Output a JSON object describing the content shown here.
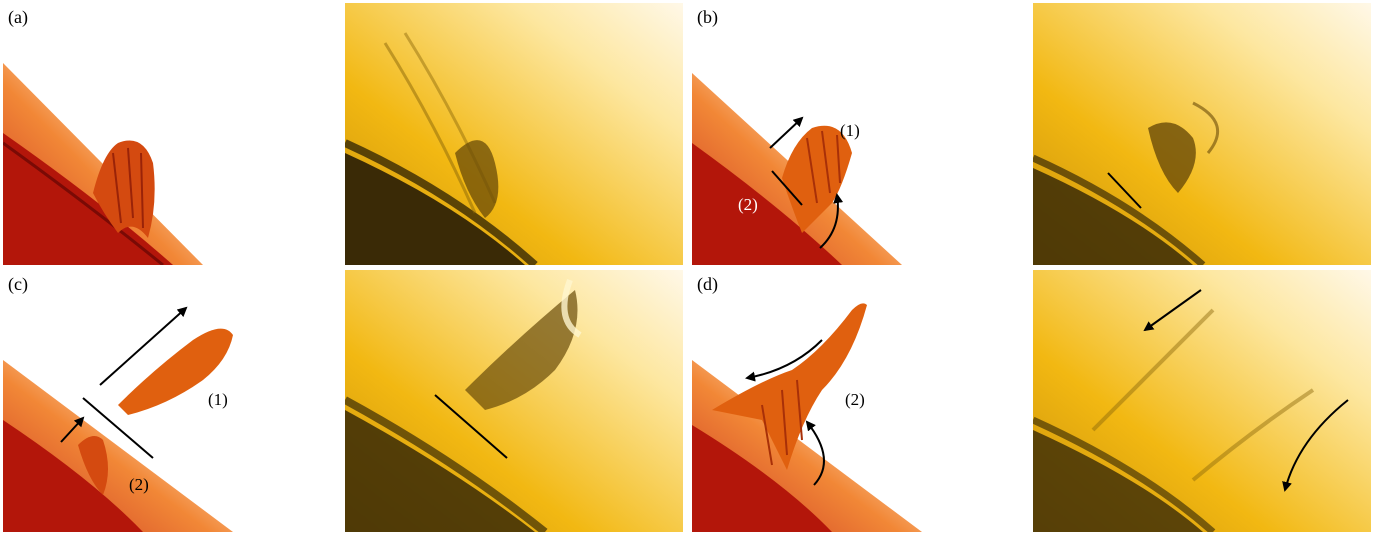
{
  "panels": [
    {
      "label": "(a)"
    },
    {
      "label": "(b)",
      "feature_labels": [
        "(1)",
        "(2)"
      ]
    },
    {
      "label": "(c)",
      "feature_labels": [
        "(1)",
        "(2)"
      ]
    },
    {
      "label": "(d)",
      "feature_labels": [
        "(2)"
      ]
    }
  ],
  "colors": {
    "ha_disk": "#b3160a",
    "ha_limb": "#e8520c",
    "ha_prominence": "#e0600f",
    "euv_background": "#f5c20f",
    "euv_disk": "#3a2a06",
    "euv_dark": "#6a4b08"
  }
}
